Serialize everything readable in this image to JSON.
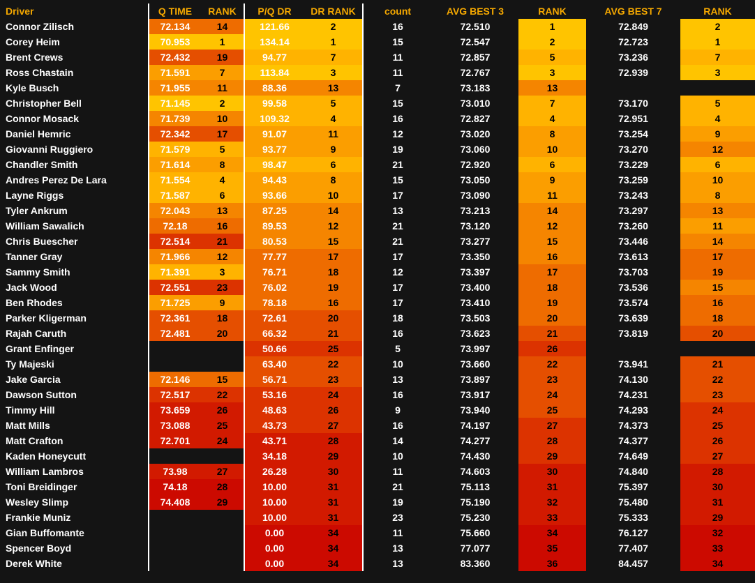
{
  "headers": [
    "Driver",
    "Q TIME",
    "RANK",
    "P/Q DR",
    "DR RANK",
    "count",
    "AVG BEST 3",
    "RANK",
    "AVG BEST 7",
    "RANK"
  ],
  "rows": [
    {
      "driver": "Connor Zilisch",
      "qtime": "72.134",
      "qrank": "14",
      "pqdr": "121.66",
      "drrank": "2",
      "count": "16",
      "avg3": "72.510",
      "rank3": "1",
      "avg7": "72.849",
      "rank7": "2"
    },
    {
      "driver": "Corey Heim",
      "qtime": "70.953",
      "qrank": "1",
      "pqdr": "134.14",
      "drrank": "1",
      "count": "15",
      "avg3": "72.547",
      "rank3": "2",
      "avg7": "72.723",
      "rank7": "1"
    },
    {
      "driver": "Brent Crews",
      "qtime": "72.432",
      "qrank": "19",
      "pqdr": "94.77",
      "drrank": "7",
      "count": "11",
      "avg3": "72.857",
      "rank3": "5",
      "avg7": "73.236",
      "rank7": "7"
    },
    {
      "driver": "Ross Chastain",
      "qtime": "71.591",
      "qrank": "7",
      "pqdr": "113.84",
      "drrank": "3",
      "count": "11",
      "avg3": "72.767",
      "rank3": "3",
      "avg7": "72.939",
      "rank7": "3"
    },
    {
      "driver": "Kyle Busch",
      "qtime": "71.955",
      "qrank": "11",
      "pqdr": "88.36",
      "drrank": "13",
      "count": "7",
      "avg3": "73.183",
      "rank3": "13",
      "avg7": "",
      "rank7": ""
    },
    {
      "driver": "Christopher Bell",
      "qtime": "71.145",
      "qrank": "2",
      "pqdr": "99.58",
      "drrank": "5",
      "count": "15",
      "avg3": "73.010",
      "rank3": "7",
      "avg7": "73.170",
      "rank7": "5"
    },
    {
      "driver": "Connor Mosack",
      "qtime": "71.739",
      "qrank": "10",
      "pqdr": "109.32",
      "drrank": "4",
      "count": "16",
      "avg3": "72.827",
      "rank3": "4",
      "avg7": "72.951",
      "rank7": "4"
    },
    {
      "driver": "Daniel Hemric",
      "qtime": "72.342",
      "qrank": "17",
      "pqdr": "91.07",
      "drrank": "11",
      "count": "12",
      "avg3": "73.020",
      "rank3": "8",
      "avg7": "73.254",
      "rank7": "9"
    },
    {
      "driver": "Giovanni Ruggiero",
      "qtime": "71.579",
      "qrank": "5",
      "pqdr": "93.77",
      "drrank": "9",
      "count": "19",
      "avg3": "73.060",
      "rank3": "10",
      "avg7": "73.270",
      "rank7": "12"
    },
    {
      "driver": "Chandler Smith",
      "qtime": "71.614",
      "qrank": "8",
      "pqdr": "98.47",
      "drrank": "6",
      "count": "21",
      "avg3": "72.920",
      "rank3": "6",
      "avg7": "73.229",
      "rank7": "6"
    },
    {
      "driver": "Andres Perez De Lara",
      "qtime": "71.554",
      "qrank": "4",
      "pqdr": "94.43",
      "drrank": "8",
      "count": "15",
      "avg3": "73.050",
      "rank3": "9",
      "avg7": "73.259",
      "rank7": "10"
    },
    {
      "driver": "Layne Riggs",
      "qtime": "71.587",
      "qrank": "6",
      "pqdr": "93.66",
      "drrank": "10",
      "count": "17",
      "avg3": "73.090",
      "rank3": "11",
      "avg7": "73.243",
      "rank7": "8"
    },
    {
      "driver": "Tyler Ankrum",
      "qtime": "72.043",
      "qrank": "13",
      "pqdr": "87.25",
      "drrank": "14",
      "count": "13",
      "avg3": "73.213",
      "rank3": "14",
      "avg7": "73.297",
      "rank7": "13"
    },
    {
      "driver": "William Sawalich",
      "qtime": "72.18",
      "qrank": "16",
      "pqdr": "89.53",
      "drrank": "12",
      "count": "21",
      "avg3": "73.120",
      "rank3": "12",
      "avg7": "73.260",
      "rank7": "11"
    },
    {
      "driver": "Chris Buescher",
      "qtime": "72.514",
      "qrank": "21",
      "pqdr": "80.53",
      "drrank": "15",
      "count": "21",
      "avg3": "73.277",
      "rank3": "15",
      "avg7": "73.446",
      "rank7": "14"
    },
    {
      "driver": "Tanner Gray",
      "qtime": "71.966",
      "qrank": "12",
      "pqdr": "77.77",
      "drrank": "17",
      "count": "17",
      "avg3": "73.350",
      "rank3": "16",
      "avg7": "73.613",
      "rank7": "17"
    },
    {
      "driver": "Sammy Smith",
      "qtime": "71.391",
      "qrank": "3",
      "pqdr": "76.71",
      "drrank": "18",
      "count": "12",
      "avg3": "73.397",
      "rank3": "17",
      "avg7": "73.703",
      "rank7": "19"
    },
    {
      "driver": "Jack Wood",
      "qtime": "72.551",
      "qrank": "23",
      "pqdr": "76.02",
      "drrank": "19",
      "count": "17",
      "avg3": "73.400",
      "rank3": "18",
      "avg7": "73.536",
      "rank7": "15"
    },
    {
      "driver": "Ben Rhodes",
      "qtime": "71.725",
      "qrank": "9",
      "pqdr": "78.18",
      "drrank": "16",
      "count": "17",
      "avg3": "73.410",
      "rank3": "19",
      "avg7": "73.574",
      "rank7": "16"
    },
    {
      "driver": "Parker Kligerman",
      "qtime": "72.361",
      "qrank": "18",
      "pqdr": "72.61",
      "drrank": "20",
      "count": "18",
      "avg3": "73.503",
      "rank3": "20",
      "avg7": "73.639",
      "rank7": "18"
    },
    {
      "driver": "Rajah Caruth",
      "qtime": "72.481",
      "qrank": "20",
      "pqdr": "66.32",
      "drrank": "21",
      "count": "16",
      "avg3": "73.623",
      "rank3": "21",
      "avg7": "73.819",
      "rank7": "20"
    },
    {
      "driver": "Grant Enfinger",
      "qtime": "",
      "qrank": "",
      "pqdr": "50.66",
      "drrank": "25",
      "count": "5",
      "avg3": "73.997",
      "rank3": "26",
      "avg7": "",
      "rank7": ""
    },
    {
      "driver": "Ty Majeski",
      "qtime": "",
      "qrank": "",
      "pqdr": "63.40",
      "drrank": "22",
      "count": "10",
      "avg3": "73.660",
      "rank3": "22",
      "avg7": "73.941",
      "rank7": "21"
    },
    {
      "driver": "Jake Garcia",
      "qtime": "72.146",
      "qrank": "15",
      "pqdr": "56.71",
      "drrank": "23",
      "count": "13",
      "avg3": "73.897",
      "rank3": "23",
      "avg7": "74.130",
      "rank7": "22"
    },
    {
      "driver": "Dawson Sutton",
      "qtime": "72.517",
      "qrank": "22",
      "pqdr": "53.16",
      "drrank": "24",
      "count": "16",
      "avg3": "73.917",
      "rank3": "24",
      "avg7": "74.231",
      "rank7": "23"
    },
    {
      "driver": "Timmy Hill",
      "qtime": "73.659",
      "qrank": "26",
      "pqdr": "48.63",
      "drrank": "26",
      "count": "9",
      "avg3": "73.940",
      "rank3": "25",
      "avg7": "74.293",
      "rank7": "24"
    },
    {
      "driver": "Matt Mills",
      "qtime": "73.088",
      "qrank": "25",
      "pqdr": "43.73",
      "drrank": "27",
      "count": "16",
      "avg3": "74.197",
      "rank3": "27",
      "avg7": "74.373",
      "rank7": "25"
    },
    {
      "driver": "Matt Crafton",
      "qtime": "72.701",
      "qrank": "24",
      "pqdr": "43.71",
      "drrank": "28",
      "count": "14",
      "avg3": "74.277",
      "rank3": "28",
      "avg7": "74.377",
      "rank7": "26"
    },
    {
      "driver": "Kaden Honeycutt",
      "qtime": "",
      "qrank": "",
      "pqdr": "34.18",
      "drrank": "29",
      "count": "10",
      "avg3": "74.430",
      "rank3": "29",
      "avg7": "74.649",
      "rank7": "27"
    },
    {
      "driver": "William Lambros",
      "qtime": "73.98",
      "qrank": "27",
      "pqdr": "26.28",
      "drrank": "30",
      "count": "11",
      "avg3": "74.603",
      "rank3": "30",
      "avg7": "74.840",
      "rank7": "28"
    },
    {
      "driver": "Toni Breidinger",
      "qtime": "74.18",
      "qrank": "28",
      "pqdr": "10.00",
      "drrank": "31",
      "count": "21",
      "avg3": "75.113",
      "rank3": "31",
      "avg7": "75.397",
      "rank7": "30"
    },
    {
      "driver": "Wesley Slimp",
      "qtime": "74.408",
      "qrank": "29",
      "pqdr": "10.00",
      "drrank": "31",
      "count": "19",
      "avg3": "75.190",
      "rank3": "32",
      "avg7": "75.480",
      "rank7": "31"
    },
    {
      "driver": "Frankie Muniz",
      "qtime": "",
      "qrank": "",
      "pqdr": "10.00",
      "drrank": "31",
      "count": "23",
      "avg3": "75.230",
      "rank3": "33",
      "avg7": "75.333",
      "rank7": "29"
    },
    {
      "driver": "Gian Buffomante",
      "qtime": "",
      "qrank": "",
      "pqdr": "0.00",
      "drrank": "34",
      "count": "11",
      "avg3": "75.660",
      "rank3": "34",
      "avg7": "76.127",
      "rank7": "32"
    },
    {
      "driver": "Spencer Boyd",
      "qtime": "",
      "qrank": "",
      "pqdr": "0.00",
      "drrank": "34",
      "count": "13",
      "avg3": "77.077",
      "rank3": "35",
      "avg7": "77.407",
      "rank7": "33"
    },
    {
      "driver": "Derek White",
      "qtime": "",
      "qrank": "",
      "pqdr": "0.00",
      "drrank": "34",
      "count": "13",
      "avg3": "83.360",
      "rank3": "36",
      "avg7": "84.457",
      "rank7": "34"
    }
  ],
  "colors": {
    "background": "#141414",
    "header_text": "#f5a800",
    "divider": "#ffffff",
    "heat_ramp": [
      "#ffc400",
      "#ffb300",
      "#fb9e00",
      "#f58500",
      "#ee6c00",
      "#e54f00",
      "#dc3300",
      "#d21a00",
      "#cc0a00"
    ]
  }
}
